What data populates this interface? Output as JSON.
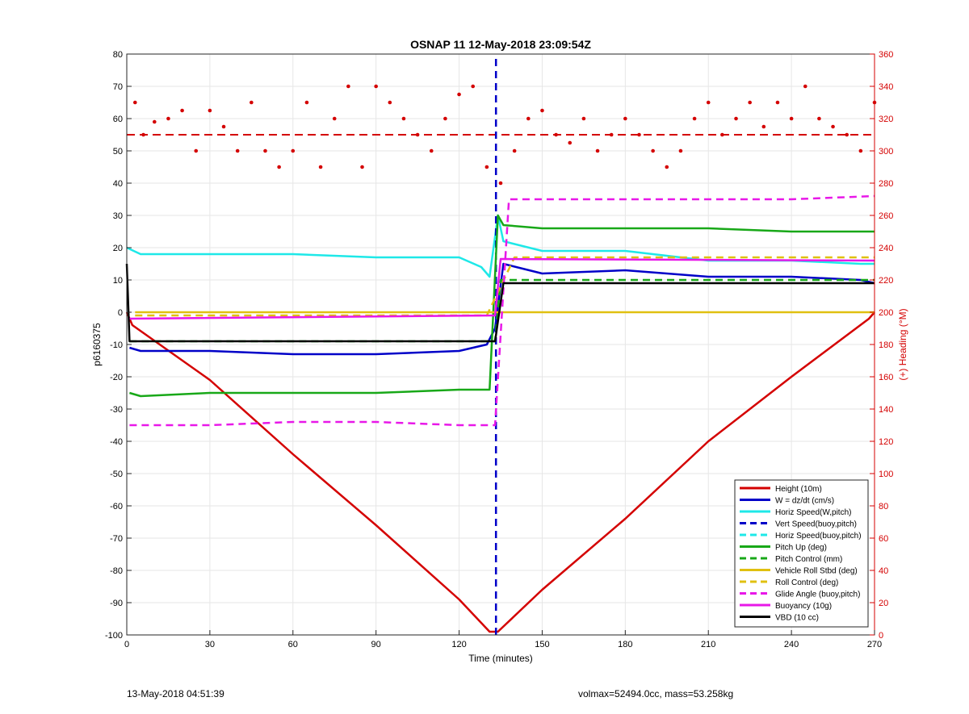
{
  "chart_data": {
    "type": "line",
    "title": "OSNAP 11 12-May-2018 23:09:54Z",
    "xlabel": "Time (minutes)",
    "ylabel": "p6160375",
    "y2label": "(+) Heading (°M)",
    "xlim": [
      0,
      270
    ],
    "ylim": [
      -100,
      80
    ],
    "y2lim": [
      0,
      360
    ],
    "xticks": [
      0,
      30,
      60,
      90,
      120,
      150,
      180,
      210,
      240,
      270
    ],
    "yticks": [
      -100,
      -90,
      -80,
      -70,
      -60,
      -50,
      -40,
      -30,
      -20,
      -10,
      0,
      10,
      20,
      30,
      40,
      50,
      60,
      70,
      80
    ],
    "y2ticks": [
      0,
      20,
      40,
      60,
      80,
      100,
      120,
      140,
      160,
      180,
      200,
      220,
      240,
      260,
      280,
      300,
      320,
      340,
      360
    ],
    "grid": true,
    "legend_position": "bottom-right",
    "series": [
      {
        "name": "Height (10m)",
        "color": "#d40000",
        "style": "solid",
        "axis": "left",
        "x": [
          0,
          2,
          30,
          60,
          90,
          120,
          131,
          134,
          150,
          180,
          210,
          240,
          268,
          270
        ],
        "y": [
          0,
          -4,
          -21,
          -44,
          -66,
          -89,
          -99,
          -99,
          -86,
          -64,
          -40,
          -20,
          -2,
          0
        ]
      },
      {
        "name": "W = dz/dt (cm/s)",
        "color": "#0000c8",
        "style": "solid",
        "axis": "left",
        "x": [
          1,
          5,
          30,
          60,
          90,
          120,
          130,
          133,
          136,
          150,
          180,
          210,
          240,
          265,
          270
        ],
        "y": [
          -11,
          -12,
          -12,
          -13,
          -13,
          -12,
          -10,
          -5,
          15,
          12,
          13,
          11,
          11,
          10,
          9
        ]
      },
      {
        "name": "Horiz Speed(W,pitch)",
        "color": "#1ee8e8",
        "style": "solid",
        "axis": "left",
        "x": [
          0,
          5,
          30,
          60,
          90,
          120,
          128,
          131,
          134,
          136,
          150,
          180,
          210,
          240,
          265,
          270
        ],
        "y": [
          20,
          18,
          18,
          18,
          17,
          17,
          14,
          11,
          30,
          22,
          19,
          19,
          16,
          16,
          15,
          15
        ]
      },
      {
        "name": "Vert Speed(buoy,pitch)",
        "color": "#0000c8",
        "style": "dashed",
        "axis": "left",
        "x": [
          133.3,
          133.3
        ],
        "y": [
          -100,
          80
        ]
      },
      {
        "name": "Horiz Speed(buoy,pitch)",
        "color": "#1ee8e8",
        "style": "dashed",
        "axis": "left",
        "x": [],
        "y": []
      },
      {
        "name": "Pitch Up (deg)",
        "color": "#18a818",
        "style": "solid",
        "axis": "left",
        "x": [
          1,
          5,
          30,
          60,
          90,
          120,
          131,
          134,
          136,
          150,
          180,
          210,
          240,
          270
        ],
        "y": [
          -25,
          -26,
          -25,
          -25,
          -25,
          -24,
          -24,
          30,
          27,
          26,
          26,
          26,
          25,
          25
        ]
      },
      {
        "name": "Pitch Control (mm)",
        "color": "#18a818",
        "style": "dashed",
        "axis": "left",
        "x": [
          1,
          133,
          135,
          270
        ],
        "y": [
          -9,
          -9,
          10,
          10
        ]
      },
      {
        "name": "Vehicle Roll Stbd (deg)",
        "color": "#e0c010",
        "style": "solid",
        "axis": "left",
        "x": [
          3,
          30,
          60,
          90,
          120,
          131,
          137,
          160,
          190,
          220,
          250,
          270
        ],
        "y": [
          0,
          0,
          0,
          0,
          0,
          0,
          0,
          0,
          0,
          0,
          0,
          0
        ]
      },
      {
        "name": "Roll Control (deg)",
        "color": "#e0c010",
        "style": "dashed",
        "axis": "left",
        "x": [
          3,
          60,
          120,
          130,
          140,
          200,
          270
        ],
        "y": [
          -1,
          -1,
          -1,
          -1,
          17,
          17,
          17
        ]
      },
      {
        "name": "Glide Angle (buoy,pitch)",
        "color": "#e818e8",
        "style": "dashed",
        "axis": "left",
        "x": [
          1,
          30,
          60,
          90,
          120,
          133,
          138,
          150,
          180,
          210,
          240,
          270
        ],
        "y": [
          -35,
          -35,
          -34,
          -34,
          -35,
          -35,
          35,
          35,
          35,
          35,
          35,
          36
        ]
      },
      {
        "name": "Buoyancy (10g)",
        "color": "#e818e8",
        "style": "solid",
        "axis": "left",
        "x": [
          1,
          133,
          135,
          270
        ],
        "y": [
          -2,
          -1,
          16.5,
          16
        ]
      },
      {
        "name": "VBD (10 cc)",
        "color": "#000000",
        "style": "solid",
        "axis": "left",
        "x": [
          0,
          1,
          133,
          136,
          270
        ],
        "y": [
          15,
          -9,
          -9,
          9,
          9
        ]
      },
      {
        "name": "Heading",
        "color": "#d40000",
        "style": "dots",
        "axis": "right",
        "x": [
          3,
          6,
          10,
          15,
          20,
          25,
          30,
          35,
          40,
          45,
          50,
          55,
          60,
          65,
          70,
          75,
          80,
          85,
          90,
          95,
          100,
          105,
          110,
          115,
          120,
          125,
          130,
          135,
          140,
          145,
          150,
          155,
          160,
          165,
          170,
          175,
          180,
          185,
          190,
          195,
          200,
          205,
          210,
          215,
          220,
          225,
          230,
          235,
          240,
          245,
          250,
          255,
          260,
          265,
          270
        ],
        "y": [
          330,
          310,
          318,
          320,
          325,
          300,
          325,
          315,
          300,
          330,
          300,
          290,
          300,
          330,
          290,
          320,
          340,
          290,
          340,
          330,
          320,
          310,
          300,
          320,
          335,
          340,
          290,
          280,
          300,
          320,
          325,
          310,
          305,
          320,
          300,
          310,
          320,
          310,
          300,
          290,
          300,
          320,
          330,
          310,
          320,
          330,
          315,
          330,
          320,
          340,
          320,
          315,
          310,
          300,
          330
        ]
      }
    ],
    "heading_reference": {
      "value": 310,
      "color": "#d40000",
      "style": "dashed",
      "axis": "right"
    }
  },
  "footer": {
    "left": "13-May-2018 04:51:39",
    "right": "volmax=52494.0cc, mass=53.258kg"
  }
}
